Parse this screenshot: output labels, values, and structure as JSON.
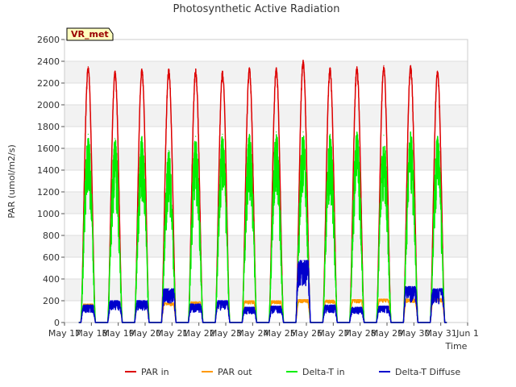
{
  "chart_data": {
    "type": "line",
    "title": "Photosynthetic Active Radiation",
    "xlabel": "Time",
    "ylabel": "PAR (umol/m2/s)",
    "annotation": "VR_met",
    "ylim": [
      0,
      2600
    ],
    "yticks": [
      0,
      200,
      400,
      600,
      800,
      1000,
      1200,
      1400,
      1600,
      1800,
      2000,
      2200,
      2400,
      2600
    ],
    "xlim": [
      0,
      15
    ],
    "xticks": [
      {
        "day": 0,
        "label": "May 17"
      },
      {
        "day": 1,
        "label": "May 18"
      },
      {
        "day": 2,
        "label": "May 19"
      },
      {
        "day": 3,
        "label": "May 20"
      },
      {
        "day": 4,
        "label": "May 21"
      },
      {
        "day": 5,
        "label": "May 22"
      },
      {
        "day": 6,
        "label": "May 23"
      },
      {
        "day": 7,
        "label": "May 24"
      },
      {
        "day": 8,
        "label": "May 25"
      },
      {
        "day": 9,
        "label": "May 26"
      },
      {
        "day": 10,
        "label": "May 27"
      },
      {
        "day": 11,
        "label": "May 28"
      },
      {
        "day": 12,
        "label": "May 29"
      },
      {
        "day": 13,
        "label": "May 30"
      },
      {
        "day": 14,
        "label": "May 31"
      },
      {
        "day": 15,
        "label": "Jun 1"
      }
    ],
    "x_unit": "days since May 17 00:00",
    "series": [
      {
        "name": "PAR in",
        "color": "#dd0000",
        "peak_day": [
          0.88,
          1.88,
          2.88,
          3.88,
          4.88,
          5.88,
          6.88,
          7.88,
          8.88,
          9.88,
          10.88,
          11.88,
          12.88,
          13.88
        ],
        "peak_value": [
          2350,
          2310,
          2330,
          2330,
          2330,
          2310,
          2340,
          2340,
          2410,
          2340,
          2350,
          2360,
          2360,
          2310
        ]
      },
      {
        "name": "PAR out",
        "color": "#ff9900",
        "peak_day": [
          0.88,
          1.88,
          2.88,
          3.88,
          4.88,
          5.88,
          6.88,
          7.88,
          8.88,
          9.88,
          10.88,
          11.88,
          12.88,
          13.88
        ],
        "peak_value": [
          170,
          180,
          180,
          180,
          190,
          190,
          200,
          200,
          210,
          205,
          210,
          215,
          215,
          220
        ]
      },
      {
        "name": "Delta-T in",
        "color": "#00ee00",
        "peak_day": [
          0.88,
          1.88,
          2.88,
          3.88,
          4.88,
          5.88,
          6.88,
          7.88,
          8.88,
          9.88,
          10.88,
          11.88,
          12.88,
          13.88
        ],
        "peak_value": [
          1730,
          1690,
          1710,
          1580,
          1710,
          1730,
          1730,
          1750,
          1750,
          1730,
          1750,
          1720,
          1750,
          1710
        ]
      },
      {
        "name": "Delta-T Diffuse",
        "color": "#0000cc",
        "peak_day": [
          0.88,
          1.88,
          2.88,
          3.88,
          4.88,
          5.88,
          6.88,
          7.88,
          8.88,
          9.88,
          10.88,
          11.88,
          12.88,
          13.88
        ],
        "peak_value": [
          160,
          200,
          200,
          310,
          170,
          200,
          140,
          150,
          570,
          160,
          140,
          150,
          330,
          310
        ]
      }
    ]
  }
}
